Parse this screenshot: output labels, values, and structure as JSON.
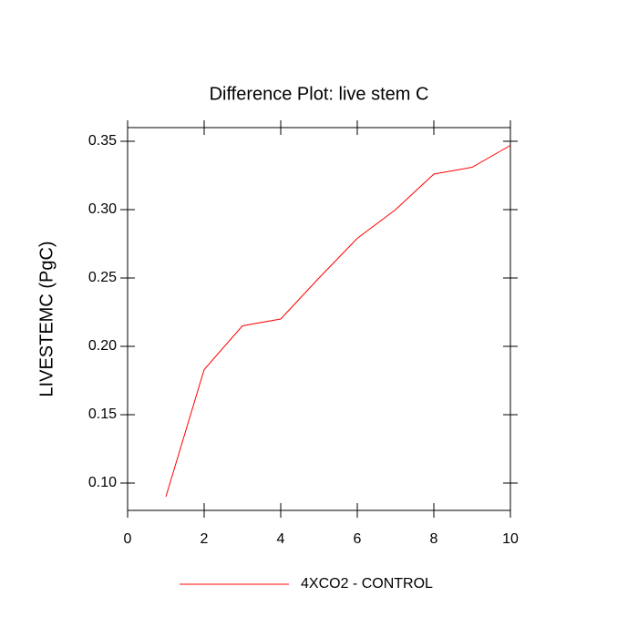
{
  "chart_data": {
    "type": "line",
    "title": "Difference Plot: live stem C",
    "y_label": "LIVESTEMC  (PgC)",
    "x": [
      1,
      2,
      3,
      4,
      5,
      6,
      7,
      8,
      9,
      10
    ],
    "series": [
      {
        "name": "4XCO2 - CONTROL",
        "color": "#ff0000",
        "values": [
          0.09,
          0.183,
          0.215,
          0.22,
          0.25,
          0.279,
          0.3,
          0.326,
          0.331,
          0.347
        ]
      }
    ],
    "xlim": [
      0,
      10
    ],
    "xticks": [
      0,
      2,
      4,
      6,
      8,
      10
    ],
    "ylim": [
      0.08,
      0.36
    ],
    "yticks": [
      {
        "value": 0.1,
        "label": "0.10"
      },
      0.15,
      {
        "value": 0.2,
        "label": "0.20"
      },
      0.25,
      {
        "value": 0.3,
        "label": "0.30"
      },
      0.35
    ],
    "grid": false,
    "legend": "bottom"
  }
}
